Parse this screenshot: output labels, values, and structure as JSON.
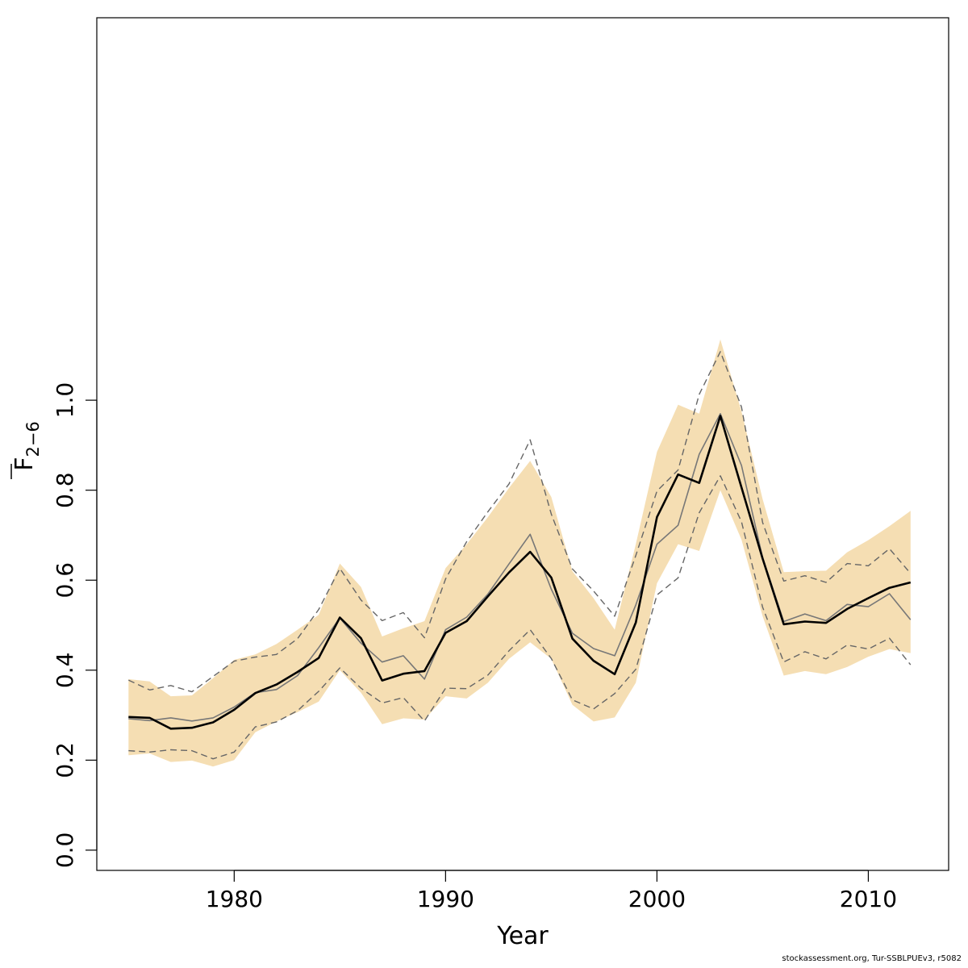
{
  "chart_data": {
    "type": "line",
    "xlabel": "Year",
    "ylabel": {
      "main": "F",
      "sub": "2−6"
    },
    "xlim": [
      1973.5,
      2013.8
    ],
    "ylim": [
      -0.045,
      1.85
    ],
    "x_ticks": [
      1980,
      1990,
      2000,
      2010
    ],
    "y_ticks": [
      0.0,
      0.2,
      0.4,
      0.6,
      0.8,
      1.0
    ],
    "y_tick_labels": [
      "0.0",
      "0.2",
      "0.4",
      "0.6",
      "0.8",
      "1.0"
    ],
    "colors": {
      "band": "#f5deb3",
      "main": "#000000",
      "alt": "#777777",
      "alt_ci": "#666666"
    },
    "x": [
      1975,
      1976,
      1977,
      1978,
      1979,
      1980,
      1981,
      1982,
      1983,
      1984,
      1985,
      1986,
      1987,
      1988,
      1989,
      1990,
      1991,
      1992,
      1993,
      1994,
      1995,
      1996,
      1997,
      1998,
      1999,
      2000,
      2001,
      2002,
      2003,
      2004,
      2005,
      2006,
      2007,
      2008,
      2009,
      2010,
      2011,
      2012
    ],
    "band_upper": [
      0.38,
      0.375,
      0.342,
      0.344,
      0.382,
      0.423,
      0.435,
      0.458,
      0.49,
      0.523,
      0.637,
      0.585,
      0.475,
      0.493,
      0.509,
      0.627,
      0.68,
      0.74,
      0.805,
      0.865,
      0.785,
      0.62,
      0.56,
      0.49,
      0.68,
      0.885,
      0.99,
      0.97,
      1.135,
      0.975,
      0.78,
      0.618,
      0.62,
      0.621,
      0.662,
      0.689,
      0.72,
      0.754
    ],
    "band_lower": [
      0.211,
      0.215,
      0.196,
      0.199,
      0.186,
      0.2,
      0.262,
      0.286,
      0.307,
      0.33,
      0.4,
      0.35,
      0.28,
      0.293,
      0.29,
      0.342,
      0.337,
      0.372,
      0.425,
      0.462,
      0.425,
      0.323,
      0.286,
      0.295,
      0.372,
      0.593,
      0.68,
      0.665,
      0.8,
      0.69,
      0.52,
      0.388,
      0.398,
      0.391,
      0.407,
      0.43,
      0.447,
      0.438
    ],
    "series": [
      {
        "values": [
          0.296,
          0.294,
          0.27,
          0.272,
          0.284,
          0.312,
          0.349,
          0.368,
          0.396,
          0.427,
          0.517,
          0.471,
          0.377,
          0.392,
          0.398,
          0.483,
          0.509,
          0.564,
          0.617,
          0.663,
          0.606,
          0.47,
          0.421,
          0.391,
          0.506,
          0.74,
          0.835,
          0.816,
          0.965,
          0.806,
          0.648,
          0.502,
          0.508,
          0.505,
          0.536,
          0.56,
          0.583,
          0.595
        ]
      },
      {
        "values": [
          0.292,
          0.288,
          0.294,
          0.287,
          0.294,
          0.318,
          0.35,
          0.357,
          0.388,
          0.45,
          0.516,
          0.46,
          0.418,
          0.432,
          0.38,
          0.49,
          0.518,
          0.569,
          0.636,
          0.702,
          0.58,
          0.482,
          0.448,
          0.432,
          0.545,
          0.68,
          0.722,
          0.88,
          0.97,
          0.855,
          0.65,
          0.508,
          0.525,
          0.51,
          0.546,
          0.541,
          0.57,
          0.512
        ]
      },
      {
        "values": [
          0.378,
          0.356,
          0.366,
          0.352,
          0.386,
          0.42,
          0.429,
          0.435,
          0.47,
          0.535,
          0.626,
          0.556,
          0.51,
          0.528,
          0.472,
          0.603,
          0.686,
          0.752,
          0.814,
          0.912,
          0.747,
          0.625,
          0.576,
          0.52,
          0.655,
          0.798,
          0.845,
          1.013,
          1.108,
          0.985,
          0.728,
          0.598,
          0.61,
          0.595,
          0.637,
          0.632,
          0.67,
          0.615
        ]
      },
      {
        "values": [
          0.221,
          0.218,
          0.223,
          0.221,
          0.203,
          0.218,
          0.274,
          0.285,
          0.31,
          0.353,
          0.405,
          0.36,
          0.327,
          0.339,
          0.287,
          0.36,
          0.359,
          0.389,
          0.443,
          0.49,
          0.426,
          0.334,
          0.314,
          0.348,
          0.402,
          0.567,
          0.605,
          0.75,
          0.832,
          0.73,
          0.54,
          0.418,
          0.441,
          0.425,
          0.456,
          0.447,
          0.471,
          0.412
        ]
      }
    ]
  },
  "footer_text": "stockassessment.org, Tur-SSBLPUEv3, r5082"
}
